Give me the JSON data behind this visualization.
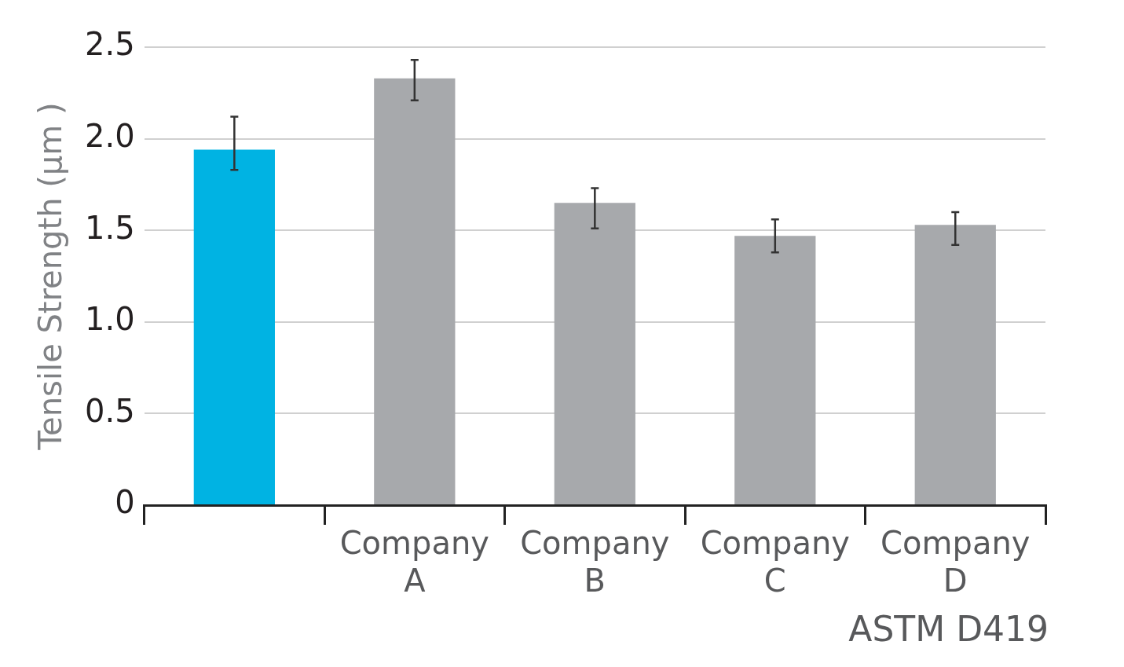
{
  "chart_data": {
    "type": "bar",
    "ylabel": "Tensile Strength (μm )",
    "categories": [
      null,
      "Company A",
      "Company B",
      "Company C",
      "Company D"
    ],
    "values": [
      1.94,
      2.33,
      1.65,
      1.47,
      1.53
    ],
    "colors": [
      "#00b3e3",
      "#a7a9ac",
      "#a7a9ac",
      "#a7a9ac",
      "#a7a9ac"
    ],
    "errors": [
      [
        1.83,
        2.12
      ],
      [
        2.21,
        2.43
      ],
      [
        1.51,
        1.73
      ],
      [
        1.38,
        1.56
      ],
      [
        1.42,
        1.6
      ]
    ],
    "ylim": [
      0,
      2.5
    ],
    "yticks": [
      {
        "value": 0,
        "label": "0"
      },
      {
        "value": 0.5,
        "label": "0.5"
      },
      {
        "value": 1,
        "label": "1.0"
      },
      {
        "value": 1.5,
        "label": "1.5"
      },
      {
        "value": 2,
        "label": "2.0"
      },
      {
        "value": 2.5,
        "label": "2.5"
      }
    ],
    "grid": "y",
    "legend": false,
    "annotations": [
      "ASTM D419"
    ]
  }
}
